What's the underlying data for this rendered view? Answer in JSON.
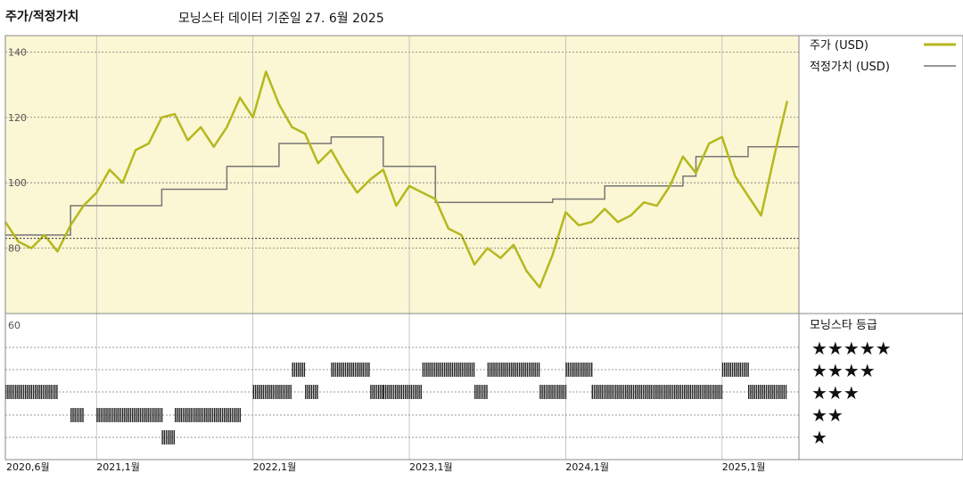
{
  "header": {
    "title": "주가/적정가치",
    "subtitle": "모닝스타 데이터 기준일 27. 6월 2025"
  },
  "colors": {
    "price": "#b5b81e",
    "fair_value": "#777777",
    "plot_bg": "#fbf6d3",
    "rating_bar": "#222222"
  },
  "chart_data": [
    {
      "type": "line",
      "title": "",
      "ylim": [
        60,
        145
      ],
      "yticks": [
        "140",
        "120",
        "100",
        "80"
      ],
      "x_tick_labels": [
        "2020,6월",
        "2021,1월",
        "2022,1월",
        "2023,1월",
        "2024,1월",
        "2025,1월"
      ],
      "x_tick_dates": [
        "2020-06",
        "2021-01",
        "2022-01",
        "2023-01",
        "2024-01",
        "2025-01"
      ],
      "x_range": [
        "2020-06",
        "2025-06"
      ],
      "grid": true,
      "legend_position": "right",
      "reference_line": 83,
      "series": [
        {
          "name": "주가 (USD)",
          "style": "line",
          "points": [
            [
              "2020-06",
              88
            ],
            [
              "2020-07",
              82
            ],
            [
              "2020-08",
              80
            ],
            [
              "2020-09",
              84
            ],
            [
              "2020-10",
              79
            ],
            [
              "2020-11",
              87
            ],
            [
              "2020-12",
              93
            ],
            [
              "2021-01",
              97
            ],
            [
              "2021-02",
              104
            ],
            [
              "2021-03",
              100
            ],
            [
              "2021-04",
              110
            ],
            [
              "2021-05",
              112
            ],
            [
              "2021-06",
              120
            ],
            [
              "2021-07",
              121
            ],
            [
              "2021-08",
              113
            ],
            [
              "2021-09",
              117
            ],
            [
              "2021-10",
              111
            ],
            [
              "2021-11",
              117
            ],
            [
              "2021-12",
              126
            ],
            [
              "2022-01",
              120
            ],
            [
              "2022-02",
              134
            ],
            [
              "2022-03",
              124
            ],
            [
              "2022-04",
              117
            ],
            [
              "2022-05",
              115
            ],
            [
              "2022-06",
              106
            ],
            [
              "2022-07",
              110
            ],
            [
              "2022-08",
              103
            ],
            [
              "2022-09",
              97
            ],
            [
              "2022-10",
              101
            ],
            [
              "2022-11",
              104
            ],
            [
              "2022-12",
              93
            ],
            [
              "2023-01",
              99
            ],
            [
              "2023-02",
              97
            ],
            [
              "2023-03",
              95
            ],
            [
              "2023-04",
              86
            ],
            [
              "2023-05",
              84
            ],
            [
              "2023-06",
              75
            ],
            [
              "2023-07",
              80
            ],
            [
              "2023-08",
              77
            ],
            [
              "2023-09",
              81
            ],
            [
              "2023-10",
              73
            ],
            [
              "2023-11",
              68
            ],
            [
              "2023-12",
              78
            ],
            [
              "2024-01",
              91
            ],
            [
              "2024-02",
              87
            ],
            [
              "2024-03",
              88
            ],
            [
              "2024-04",
              92
            ],
            [
              "2024-05",
              88
            ],
            [
              "2024-06",
              90
            ],
            [
              "2024-07",
              94
            ],
            [
              "2024-08",
              93
            ],
            [
              "2024-09",
              99
            ],
            [
              "2024-10",
              108
            ],
            [
              "2024-11",
              103
            ],
            [
              "2024-12",
              112
            ],
            [
              "2025-01",
              114
            ],
            [
              "2025-02",
              102
            ],
            [
              "2025-03",
              96
            ],
            [
              "2025-04",
              90
            ],
            [
              "2025-05",
              108
            ],
            [
              "2025-06",
              125
            ]
          ]
        },
        {
          "name": "적정가치 (USD)",
          "style": "step",
          "points": [
            [
              "2020-06",
              84
            ],
            [
              "2020-11",
              93
            ],
            [
              "2021-06",
              98
            ],
            [
              "2021-11",
              105
            ],
            [
              "2022-03",
              112
            ],
            [
              "2022-07",
              114
            ],
            [
              "2022-11",
              105
            ],
            [
              "2023-03",
              94
            ],
            [
              "2023-12",
              95
            ],
            [
              "2024-04",
              99
            ],
            [
              "2024-10",
              102
            ],
            [
              "2024-11",
              108
            ],
            [
              "2025-03",
              111
            ],
            [
              "2025-06",
              111
            ]
          ]
        }
      ]
    },
    {
      "type": "heatmap",
      "title": "모닝스타 등급",
      "y_tick": "60",
      "levels": [
        "★★★★★",
        "★★★★",
        "★★★",
        "★★",
        "★"
      ],
      "ratings_by_month": [
        {
          "start": "2020-06",
          "end": "2020-10",
          "stars": 3
        },
        {
          "start": "2020-11",
          "end": "2020-12",
          "stars": 2
        },
        {
          "start": "2021-01",
          "end": "2021-06",
          "stars": 2
        },
        {
          "start": "2021-06",
          "end": "2021-07",
          "stars": 1
        },
        {
          "start": "2021-07",
          "end": "2021-12",
          "stars": 2
        },
        {
          "start": "2022-01",
          "end": "2022-04",
          "stars": 3
        },
        {
          "start": "2022-04",
          "end": "2022-05",
          "stars": 4
        },
        {
          "start": "2022-05",
          "end": "2022-06",
          "stars": 3
        },
        {
          "start": "2022-07",
          "end": "2022-10",
          "stars": 4
        },
        {
          "start": "2022-10",
          "end": "2022-11",
          "stars": 3
        },
        {
          "start": "2022-11",
          "end": "2023-02",
          "stars": 3
        },
        {
          "start": "2023-02",
          "end": "2023-06",
          "stars": 4
        },
        {
          "start": "2023-06",
          "end": "2023-07",
          "stars": 3
        },
        {
          "start": "2023-07",
          "end": "2023-11",
          "stars": 4
        },
        {
          "start": "2023-11",
          "end": "2024-01",
          "stars": 3
        },
        {
          "start": "2024-01",
          "end": "2024-03",
          "stars": 4
        },
        {
          "start": "2024-03",
          "end": "2025-01",
          "stars": 3
        },
        {
          "start": "2025-01",
          "end": "2025-03",
          "stars": 4
        },
        {
          "start": "2025-03",
          "end": "2025-06",
          "stars": 3
        }
      ]
    }
  ]
}
